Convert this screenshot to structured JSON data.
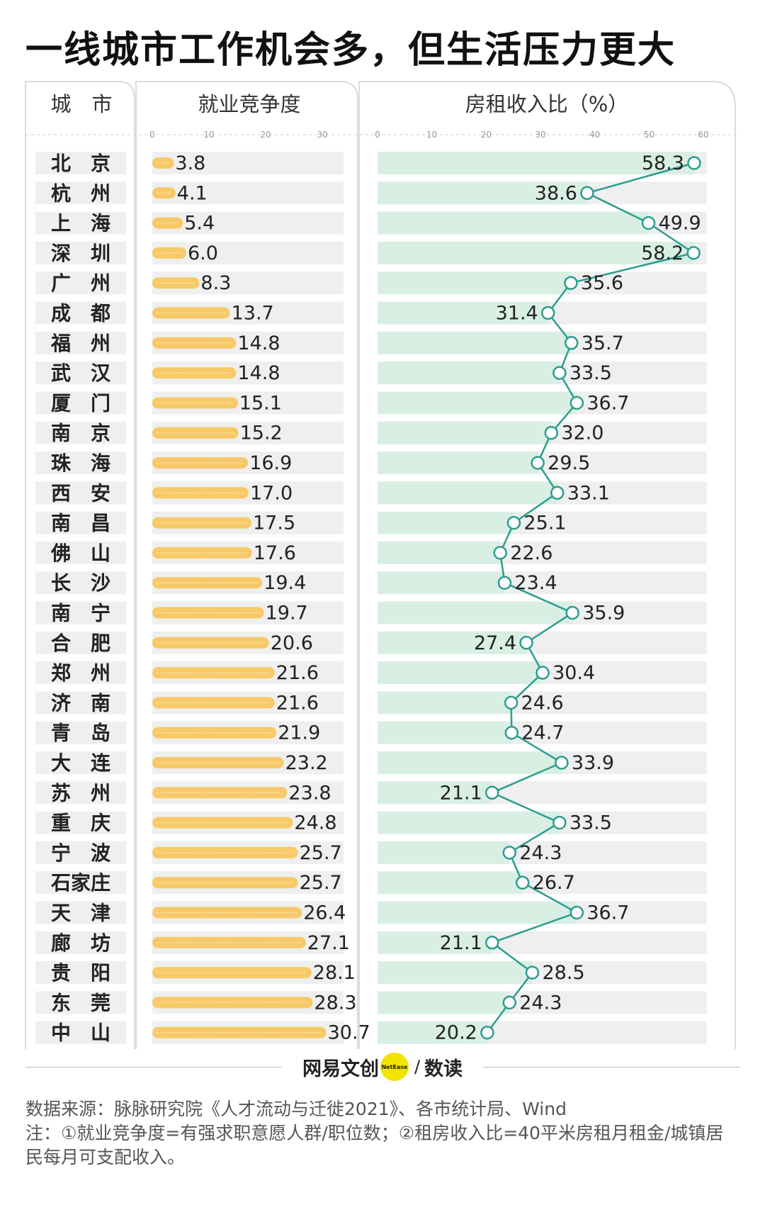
{
  "title": "一线城市工作机会多，但生活压力更大",
  "headers": {
    "city": "城　市",
    "competition": "就业竞争度",
    "rent_ratio": "房租收入比（%）"
  },
  "brand": {
    "name": "网易文创",
    "logo_text": "NetEase",
    "sep": "/",
    "section": "数读"
  },
  "footer": {
    "source": "数据来源：脉脉研究院《人才流动与迁徙2021》、各市统计局、Wind",
    "note": "注：①就业竞争度=有强求职意愿人群/职位数；②租房收入比=40平米房租月租金/城镇居民每月可支配收入。"
  },
  "colors": {
    "bar": "#f7c968",
    "bar_track": "#efefef",
    "line": "#2c9e8f",
    "area": "#d9efe4"
  },
  "chart_data": [
    {
      "type": "bar",
      "title": "就业竞争度",
      "categories": [
        "北　京",
        "杭　州",
        "上　海",
        "深　圳",
        "广　州",
        "成　都",
        "福　州",
        "武　汉",
        "厦　门",
        "南　京",
        "珠　海",
        "西　安",
        "南　昌",
        "佛　山",
        "长　沙",
        "南　宁",
        "合　肥",
        "郑　州",
        "济　南",
        "青　岛",
        "大　连",
        "苏　州",
        "重　庆",
        "宁　波",
        "石家庄",
        "天　津",
        "廊　坊",
        "贵　阳",
        "东　莞",
        "中　山"
      ],
      "values": [
        3.8,
        4.1,
        5.4,
        6.0,
        8.3,
        13.7,
        14.8,
        14.8,
        15.1,
        15.2,
        16.9,
        17.0,
        17.5,
        17.6,
        19.4,
        19.7,
        20.6,
        21.6,
        21.6,
        21.9,
        23.2,
        23.8,
        24.8,
        25.7,
        25.7,
        26.4,
        27.1,
        28.1,
        28.3,
        30.7
      ],
      "labels": [
        "3.8",
        "4.1",
        "5.4",
        "6.0",
        "8.3",
        "13.7",
        "14.8",
        "14.8",
        "15.1",
        "15.2",
        "16.9",
        "17.0",
        "17.5",
        "17.6",
        "19.4",
        "19.7",
        "20.6",
        "21.6",
        "21.6",
        "21.9",
        "23.2",
        "23.8",
        "24.8",
        "25.7",
        "25.7",
        "26.4",
        "27.1",
        "28.1",
        "28.3",
        "30.7"
      ],
      "xlim": [
        0,
        30
      ],
      "ticks": [
        "0",
        "10",
        "20",
        "30"
      ]
    },
    {
      "type": "line",
      "title": "房租收入比（%）",
      "categories": [
        "北　京",
        "杭　州",
        "上　海",
        "深　圳",
        "广　州",
        "成　都",
        "福　州",
        "武　汉",
        "厦　门",
        "南　京",
        "珠　海",
        "西　安",
        "南　昌",
        "佛　山",
        "长　沙",
        "南　宁",
        "合　肥",
        "郑　州",
        "济　南",
        "青　岛",
        "大　连",
        "苏　州",
        "重　庆",
        "宁　波",
        "石家庄",
        "天　津",
        "廊　坊",
        "贵　阳",
        "东　莞",
        "中　山"
      ],
      "values": [
        58.3,
        38.6,
        49.9,
        58.2,
        35.6,
        31.4,
        35.7,
        33.5,
        36.7,
        32.0,
        29.5,
        33.1,
        25.1,
        22.6,
        23.4,
        35.9,
        27.4,
        30.4,
        24.6,
        24.7,
        33.9,
        21.1,
        33.5,
        24.3,
        26.7,
        36.7,
        21.1,
        28.5,
        24.3,
        20.2
      ],
      "labels": [
        "58.3",
        "38.6",
        "49.9",
        "58.2",
        "35.6",
        "31.4",
        "35.7",
        "33.5",
        "36.7",
        "32.0",
        "29.5",
        "33.1",
        "25.1",
        "22.6",
        "23.4",
        "35.9",
        "27.4",
        "30.4",
        "24.6",
        "24.7",
        "33.9",
        "21.1",
        "33.5",
        "24.3",
        "26.7",
        "36.7",
        "21.1",
        "28.5",
        "24.3",
        "20.2"
      ],
      "xlim": [
        0,
        60
      ],
      "ticks": [
        "0",
        "10",
        "20",
        "30",
        "40",
        "50",
        "60"
      ]
    }
  ]
}
